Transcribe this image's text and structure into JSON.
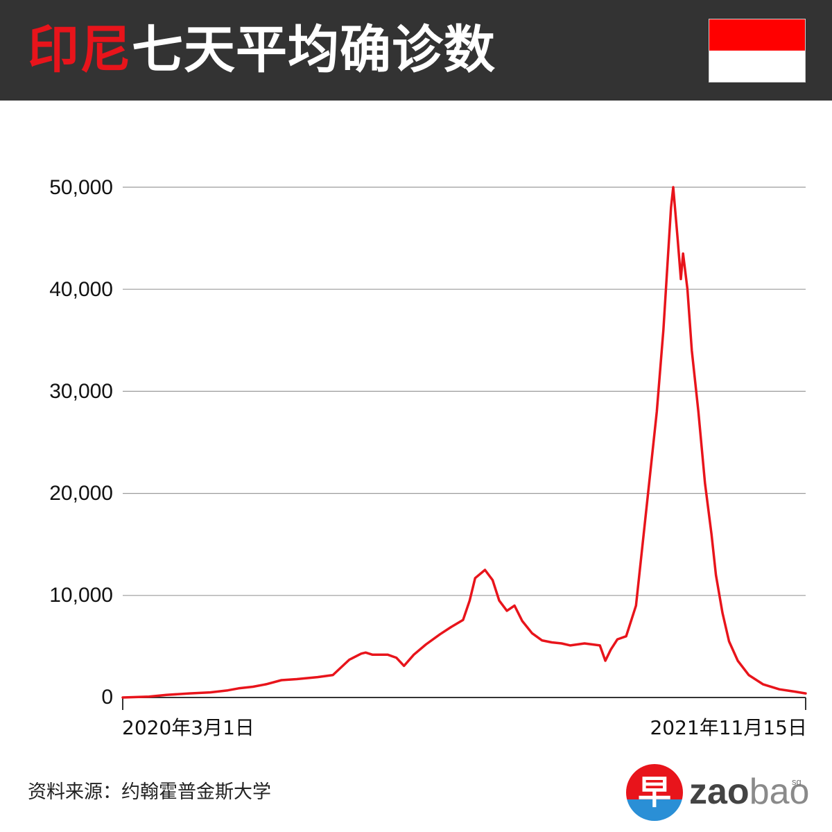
{
  "header": {
    "title_accent": "印尼",
    "title_rest": "七天平均确诊数",
    "flag": {
      "top_color": "#ff0000",
      "bottom_color": "#ffffff"
    }
  },
  "footer": {
    "source": "资料来源：约翰霍普金斯大学",
    "logo_char": "早",
    "logo_zao": "zao",
    "logo_bao": "bao",
    "logo_sg": "sg"
  },
  "chart_data": {
    "type": "line",
    "title": "印尼七天平均确诊数",
    "x_start_label": "2020年3月1日",
    "x_end_label": "2021年11月15日",
    "x_range": [
      "2020-03-01",
      "2021-11-15"
    ],
    "ylim": [
      0,
      50000
    ],
    "y_ticks": [
      0,
      10000,
      20000,
      30000,
      40000,
      50000
    ],
    "y_tick_labels": [
      "0",
      "10,000",
      "20,000",
      "30,000",
      "40,000",
      "50,000"
    ],
    "grid": true,
    "line_color": "#e8141b",
    "series": [
      {
        "points": [
          [
            "2020-03-01",
            0
          ],
          [
            "2020-03-25",
            80
          ],
          [
            "2020-04-10",
            250
          ],
          [
            "2020-05-01",
            400
          ],
          [
            "2020-05-20",
            500
          ],
          [
            "2020-06-05",
            700
          ],
          [
            "2020-06-15",
            900
          ],
          [
            "2020-06-28",
            1050
          ],
          [
            "2020-07-10",
            1300
          ],
          [
            "2020-07-24",
            1700
          ],
          [
            "2020-08-07",
            1800
          ],
          [
            "2020-08-26",
            2000
          ],
          [
            "2020-09-09",
            2200
          ],
          [
            "2020-09-24",
            3700
          ],
          [
            "2020-10-05",
            4300
          ],
          [
            "2020-10-09",
            4400
          ],
          [
            "2020-10-15",
            4200
          ],
          [
            "2020-10-29",
            4200
          ],
          [
            "2020-11-06",
            3900
          ],
          [
            "2020-11-13",
            3100
          ],
          [
            "2020-11-22",
            4200
          ],
          [
            "2020-12-03",
            5200
          ],
          [
            "2020-12-16",
            6200
          ],
          [
            "2020-12-26",
            6900
          ],
          [
            "2021-01-06",
            7600
          ],
          [
            "2021-01-12",
            9500
          ],
          [
            "2021-01-17",
            11700
          ],
          [
            "2021-01-26",
            12500
          ],
          [
            "2021-02-02",
            11500
          ],
          [
            "2021-02-08",
            9500
          ],
          [
            "2021-02-15",
            8500
          ],
          [
            "2021-02-22",
            9000
          ],
          [
            "2021-03-01",
            7500
          ],
          [
            "2021-03-10",
            6300
          ],
          [
            "2021-03-19",
            5600
          ],
          [
            "2021-03-28",
            5400
          ],
          [
            "2021-04-06",
            5300
          ],
          [
            "2021-04-14",
            5100
          ],
          [
            "2021-04-27",
            5300
          ],
          [
            "2021-05-11",
            5100
          ],
          [
            "2021-05-16",
            3600
          ],
          [
            "2021-05-21",
            4700
          ],
          [
            "2021-05-27",
            5700
          ],
          [
            "2021-06-04",
            6000
          ],
          [
            "2021-06-13",
            9000
          ],
          [
            "2021-06-24",
            20000
          ],
          [
            "2021-07-02",
            28000
          ],
          [
            "2021-07-08",
            36000
          ],
          [
            "2021-07-15",
            48000
          ],
          [
            "2021-07-17",
            50000
          ],
          [
            "2021-07-21",
            45000
          ],
          [
            "2021-07-24",
            41000
          ],
          [
            "2021-07-26",
            43500
          ],
          [
            "2021-07-30",
            40000
          ],
          [
            "2021-08-03",
            34000
          ],
          [
            "2021-08-09",
            28000
          ],
          [
            "2021-08-15",
            21000
          ],
          [
            "2021-08-21",
            16000
          ],
          [
            "2021-08-25",
            12000
          ],
          [
            "2021-08-31",
            8300
          ],
          [
            "2021-09-06",
            5500
          ],
          [
            "2021-09-14",
            3600
          ],
          [
            "2021-09-24",
            2200
          ],
          [
            "2021-10-07",
            1300
          ],
          [
            "2021-10-22",
            800
          ],
          [
            "2021-11-05",
            580
          ],
          [
            "2021-11-15",
            400
          ]
        ]
      }
    ]
  }
}
